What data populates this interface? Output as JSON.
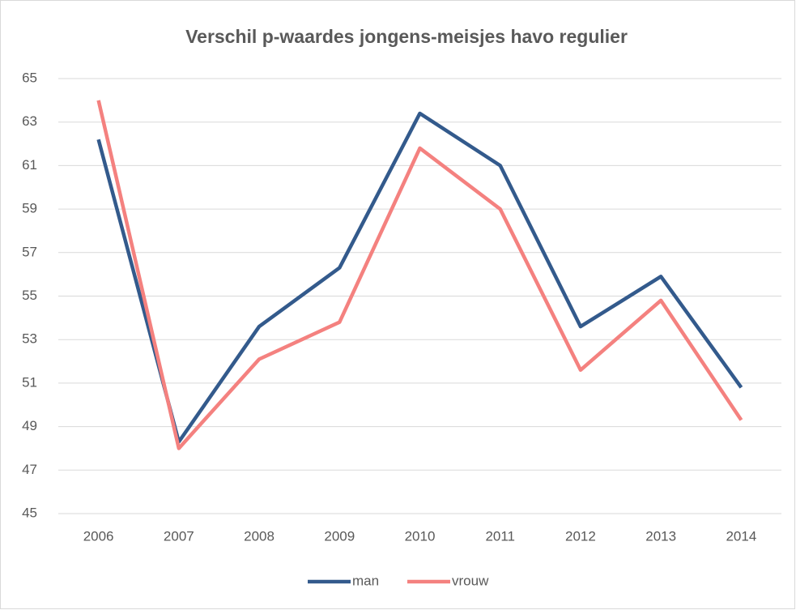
{
  "chart_data": {
    "type": "line",
    "title": "Verschil p-waardes jongens-meisjes havo regulier",
    "categories": [
      "2006",
      "2007",
      "2008",
      "2009",
      "2010",
      "2011",
      "2012",
      "2013",
      "2014"
    ],
    "series": [
      {
        "name": "man",
        "color": "#335a8c",
        "values": [
          62.2,
          48.3,
          53.6,
          56.3,
          63.4,
          61.0,
          53.6,
          55.9,
          50.8
        ]
      },
      {
        "name": "vrouw",
        "color": "#f4817f",
        "values": [
          64.0,
          48.0,
          52.1,
          53.8,
          61.8,
          59.0,
          51.6,
          54.8,
          49.3
        ]
      }
    ],
    "ylim": [
      45,
      65
    ],
    "yticks": [
      45,
      47,
      49,
      51,
      53,
      55,
      57,
      59,
      61,
      63,
      65
    ],
    "grid": true,
    "legend": "bottom"
  }
}
